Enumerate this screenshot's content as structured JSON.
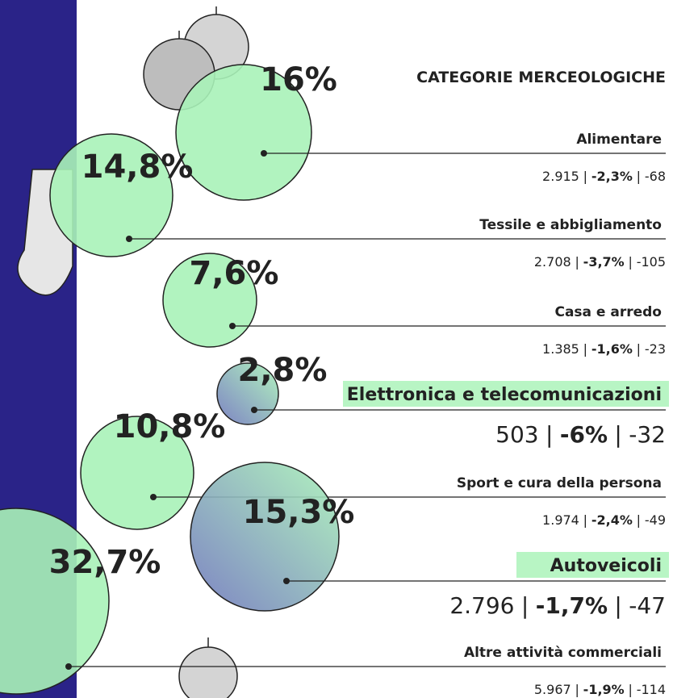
{
  "title": "CATEGORIE MERCEOLOGICHE",
  "separator": "|",
  "items": [
    {
      "share": "16%",
      "name": "Alimentare",
      "count": "2.915",
      "change": "-2,3%",
      "delta": "-68"
    },
    {
      "share": "14,8%",
      "name": "Tessile e abbigliamento",
      "count": "2.708",
      "change": "-3,7%",
      "delta": "-105"
    },
    {
      "share": "7,6%",
      "name": "Casa e arredo",
      "count": "1.385",
      "change": "-1,6%",
      "delta": "-23"
    },
    {
      "share": "2,8%",
      "name": "Elettronica e telecomunicazioni",
      "count": "503",
      "change": "-6%",
      "delta": "-32"
    },
    {
      "share": "10,8%",
      "name": "Sport e cura della persona",
      "count": "1.974",
      "change": "-2,4%",
      "delta": "-49"
    },
    {
      "share": "15,3%",
      "name": "Autoveicoli",
      "count": "2.796",
      "change": "-1,7%",
      "delta": "-47"
    },
    {
      "share": "32,7%",
      "name": "Altre attività commerciali",
      "count": "5.967",
      "change": "-1,9%",
      "delta": "-114"
    }
  ]
}
